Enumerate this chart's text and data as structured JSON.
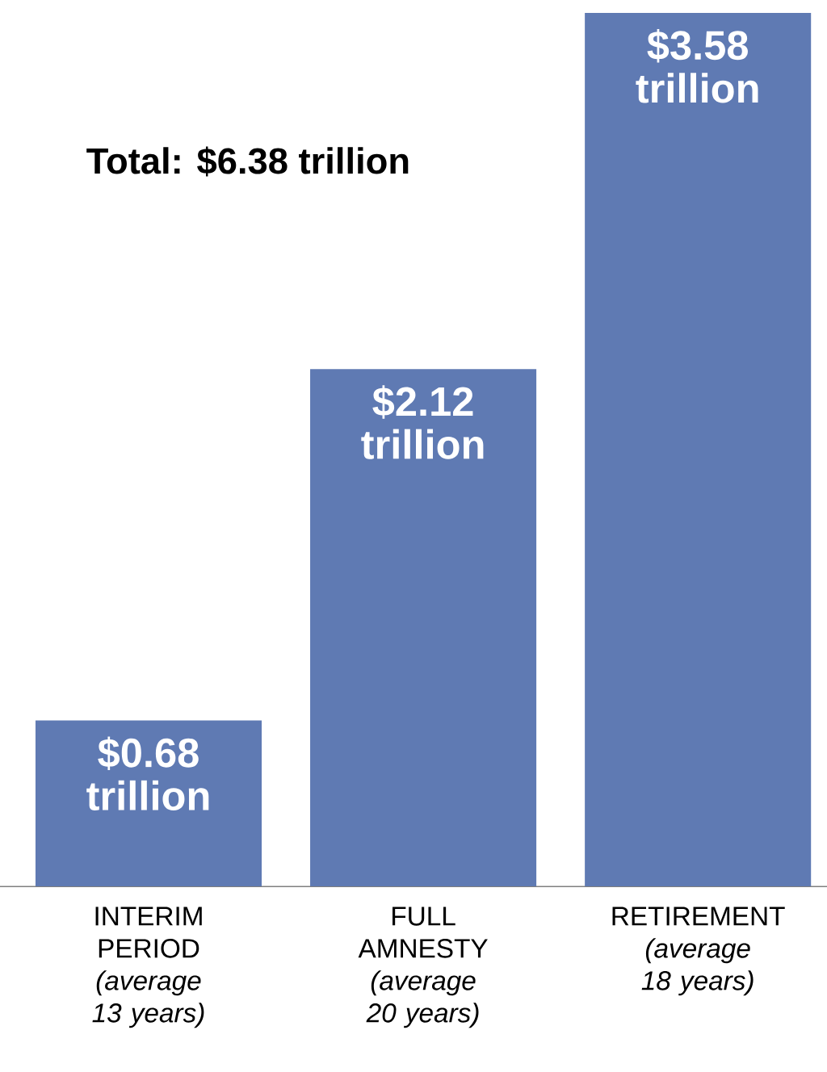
{
  "chart_data": {
    "type": "bar",
    "categories": [
      "INTERIM PERIOD *(average 13 years)*",
      "FULL AMNESTY *(average 20 years)*",
      "RETIREMENT *(average 18 years)*"
    ],
    "values": [
      0.68,
      2.12,
      3.58
    ],
    "value_labels": [
      "$0.68 trillion",
      "$2.12 trillion",
      "$3.58 trillion"
    ],
    "color": "#5f7ab3",
    "ylim": [
      0,
      3.58
    ],
    "tick_labels": "x",
    "annotations": [
      "Total: $6.38 trillion"
    ]
  }
}
